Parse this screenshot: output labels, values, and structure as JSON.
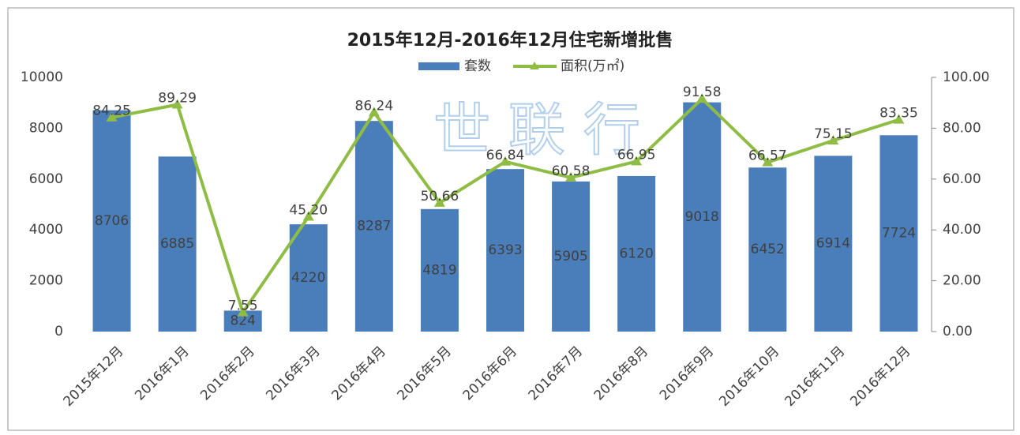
{
  "chart_data": {
    "type": "bar_line",
    "title": "2015年12月-2016年12月住宅新增批售",
    "watermark": "世 联 行",
    "categories": [
      "2015年12月",
      "2016年1月",
      "2016年2月",
      "2016年3月",
      "2016年4月",
      "2016年5月",
      "2016年6月",
      "2016年7月",
      "2016年8月",
      "2016年9月",
      "2016年10月",
      "2016年11月",
      "2016年12月"
    ],
    "series": [
      {
        "name": "套数",
        "type": "bar",
        "color": "#4a7ebb",
        "values": [
          8706,
          6885,
          824,
          4220,
          8287,
          4819,
          6393,
          5905,
          6120,
          9018,
          6452,
          6914,
          7724
        ]
      },
      {
        "name": "面积(万㎡)",
        "type": "line",
        "axis": "y2",
        "color": "#8fbc45",
        "values": [
          84.25,
          89.29,
          7.55,
          45.2,
          86.24,
          50.66,
          66.84,
          60.58,
          66.95,
          91.58,
          66.57,
          75.15,
          83.35
        ],
        "value_labels": [
          "84.25",
          "89.29",
          "7.55",
          "45.20",
          "86.24",
          "50.66",
          "66.84",
          "60.58",
          "66.95",
          "91.58",
          "66.57",
          "75.15",
          "83.35"
        ]
      }
    ],
    "ylim": [
      0,
      10000
    ],
    "yticks": [
      0,
      2000,
      4000,
      6000,
      8000,
      10000
    ],
    "y2lim": [
      0,
      100
    ],
    "y2ticks": [
      {
        "value": 0,
        "label": "0.00"
      },
      {
        "value": 20,
        "label": "20.00"
      },
      {
        "value": 40,
        "label": "40.00"
      },
      {
        "value": 60,
        "label": "60.00"
      },
      {
        "value": 80,
        "label": "80.00"
      },
      {
        "value": 100,
        "label": "100.00"
      }
    ],
    "legend": "top"
  }
}
